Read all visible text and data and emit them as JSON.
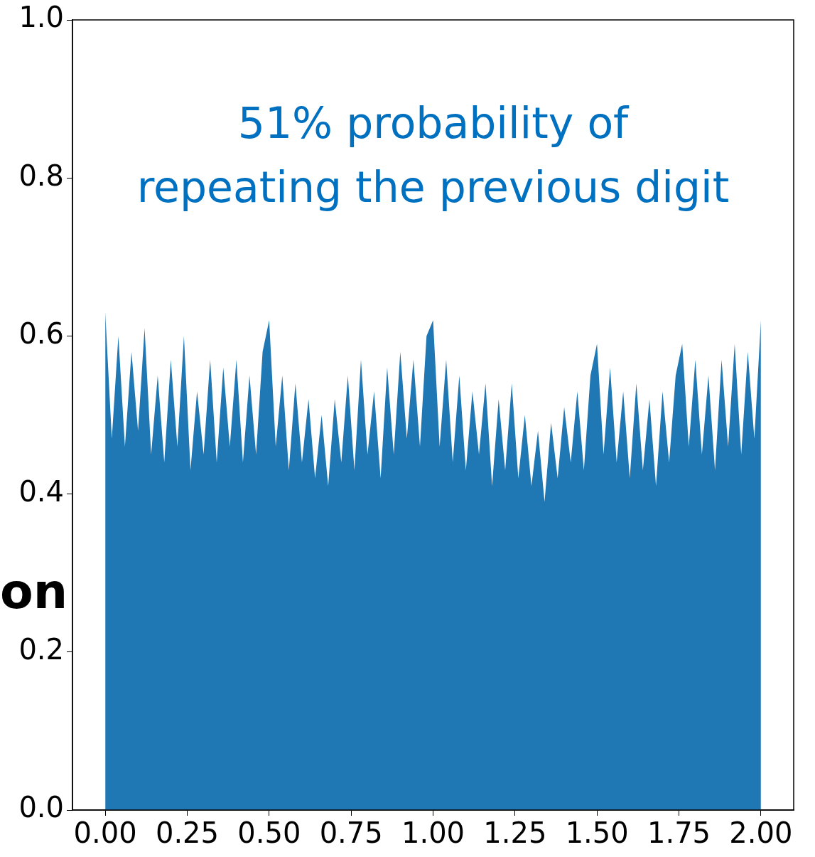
{
  "chart_data": {
    "type": "area",
    "x": [
      0.0,
      0.02,
      0.04,
      0.06,
      0.08,
      0.1,
      0.12,
      0.14,
      0.16,
      0.18,
      0.2,
      0.22,
      0.24,
      0.26,
      0.28,
      0.3,
      0.32,
      0.34,
      0.36,
      0.38,
      0.4,
      0.42,
      0.44,
      0.46,
      0.48,
      0.5,
      0.52,
      0.54,
      0.56,
      0.58,
      0.6,
      0.62,
      0.64,
      0.66,
      0.68,
      0.7,
      0.72,
      0.74,
      0.76,
      0.78,
      0.8,
      0.82,
      0.84,
      0.86,
      0.88,
      0.9,
      0.92,
      0.94,
      0.96,
      0.98,
      1.0,
      1.02,
      1.04,
      1.06,
      1.08,
      1.1,
      1.12,
      1.14,
      1.16,
      1.18,
      1.2,
      1.22,
      1.24,
      1.26,
      1.28,
      1.3,
      1.32,
      1.34,
      1.36,
      1.38,
      1.4,
      1.42,
      1.44,
      1.46,
      1.48,
      1.5,
      1.52,
      1.54,
      1.56,
      1.58,
      1.6,
      1.62,
      1.64,
      1.66,
      1.68,
      1.7,
      1.72,
      1.74,
      1.76,
      1.78,
      1.8,
      1.82,
      1.84,
      1.86,
      1.88,
      1.9,
      1.92,
      1.94,
      1.96,
      1.98,
      2.0
    ],
    "series": [
      {
        "color": "#1f77b4",
        "values": [
          0.63,
          0.47,
          0.6,
          0.46,
          0.58,
          0.48,
          0.61,
          0.45,
          0.55,
          0.44,
          0.57,
          0.46,
          0.6,
          0.43,
          0.53,
          0.45,
          0.57,
          0.44,
          0.56,
          0.46,
          0.57,
          0.44,
          0.55,
          0.45,
          0.58,
          0.62,
          0.46,
          0.55,
          0.43,
          0.54,
          0.44,
          0.52,
          0.42,
          0.5,
          0.41,
          0.52,
          0.44,
          0.55,
          0.43,
          0.57,
          0.45,
          0.53,
          0.42,
          0.56,
          0.45,
          0.58,
          0.47,
          0.57,
          0.46,
          0.6,
          0.62,
          0.46,
          0.57,
          0.44,
          0.55,
          0.43,
          0.53,
          0.45,
          0.54,
          0.41,
          0.52,
          0.43,
          0.54,
          0.42,
          0.5,
          0.41,
          0.48,
          0.39,
          0.49,
          0.42,
          0.51,
          0.44,
          0.53,
          0.43,
          0.55,
          0.59,
          0.45,
          0.56,
          0.44,
          0.53,
          0.42,
          0.54,
          0.43,
          0.52,
          0.41,
          0.53,
          0.44,
          0.55,
          0.59,
          0.46,
          0.57,
          0.45,
          0.55,
          0.43,
          0.57,
          0.46,
          0.59,
          0.45,
          0.58,
          0.47,
          0.62
        ]
      }
    ],
    "xlim": [
      -0.1,
      2.1
    ],
    "xticks": [
      {
        "value": 0,
        "label": "0.00"
      },
      {
        "value": 0.25,
        "label": "0.25"
      },
      {
        "value": 0.5,
        "label": "0.50"
      },
      {
        "value": 0.75,
        "label": "0.75"
      },
      {
        "value": 1,
        "label": "1.00"
      },
      {
        "value": 1.25,
        "label": "1.25"
      },
      {
        "value": 1.5,
        "label": "1.50"
      },
      {
        "value": 1.75,
        "label": "1.75"
      },
      {
        "value": 2,
        "label": "2.00"
      }
    ],
    "ylim": [
      0,
      1
    ],
    "yticks": [
      {
        "value": 0,
        "label": "0.0"
      },
      {
        "value": 0.2,
        "label": "0.2"
      },
      {
        "value": 0.4,
        "label": "0.4"
      },
      {
        "value": 0.6,
        "label": "0.6"
      },
      {
        "value": 0.8,
        "label": "0.8"
      },
      {
        "value": 1,
        "label": "1.0"
      }
    ],
    "grid": false,
    "legend": false,
    "annotations": [
      "51% probability of\nrepeating the previous digit",
      "on"
    ]
  }
}
